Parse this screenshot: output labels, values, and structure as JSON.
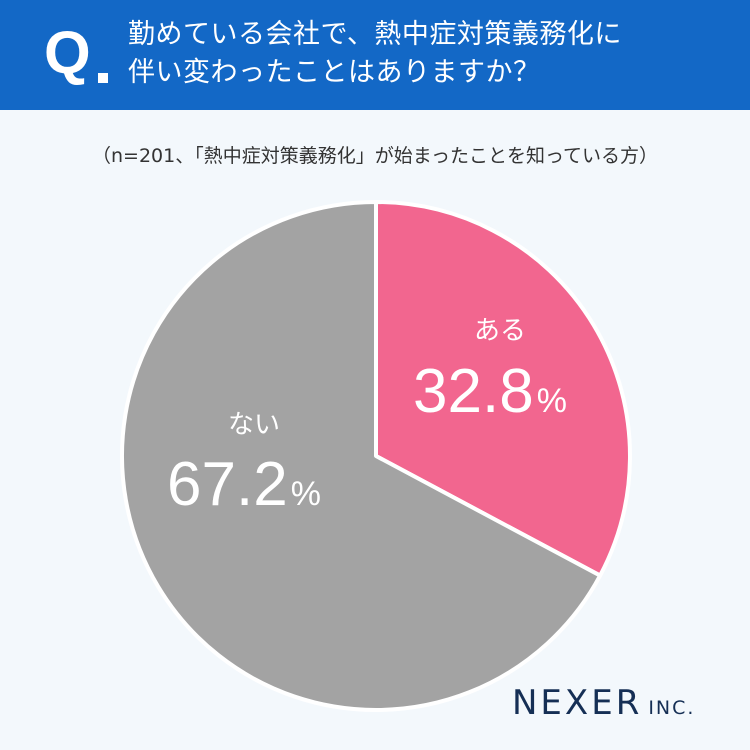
{
  "header": {
    "q_mark": "Q",
    "question_line1": "勤めている会社で、熱中症対策義務化に",
    "question_line2": "伴い変わったことはありますか？",
    "background_color": "#1368c6"
  },
  "note": "（n=201、「熱中症対策義務化」が始まったことを知っている方）",
  "chart_data": {
    "type": "pie",
    "categories": [
      "ある",
      "ない"
    ],
    "values": [
      32.8,
      67.2
    ],
    "value_labels": [
      "32.8",
      "67.2"
    ],
    "unit": "%",
    "colors": [
      "#f2668f",
      "#a3a3a3"
    ],
    "start": "12 o'clock, clockwise"
  },
  "logo": {
    "main": "NEXER",
    "sub": "INC."
  }
}
